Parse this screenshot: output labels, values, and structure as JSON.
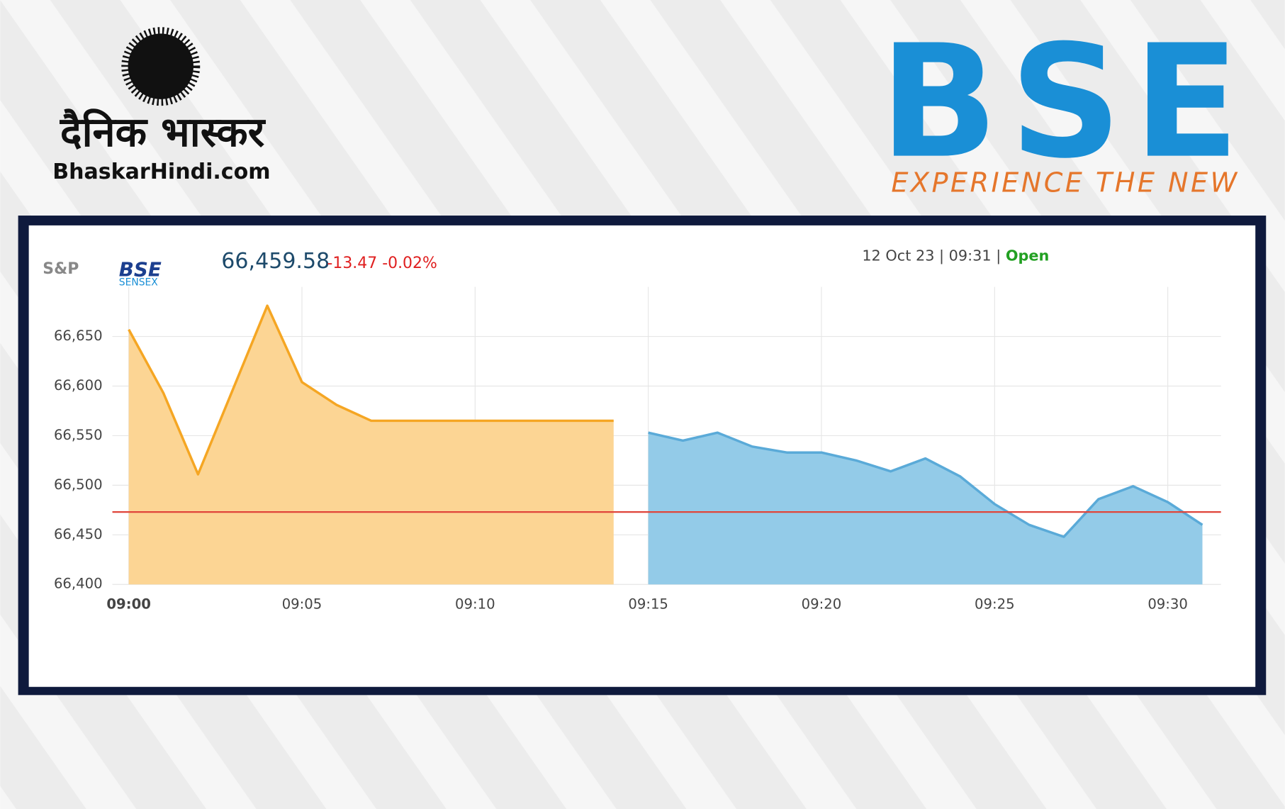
{
  "header": {
    "brand_hindi": "दैनिक भास्कर",
    "brand_site": "BhaskarHindi.com",
    "exchange_logo": "BSE",
    "exchange_tagline": "EXPERIENCE THE NEW"
  },
  "widget": {
    "index_prefix": "S&P",
    "index_name": "BSE",
    "index_sub": "SENSEX",
    "last_price": "66,459.58",
    "change": "-13.47",
    "change_pct": "-0.02%",
    "timestamp": "12 Oct 23 | 09:31 |",
    "status": "Open"
  },
  "chart_data": {
    "type": "area",
    "categories": [
      "09:00",
      null,
      null,
      null,
      null,
      "09:05",
      null,
      null,
      null,
      null,
      "09:10",
      null,
      null,
      null,
      null,
      "09:15",
      null,
      null,
      null,
      null,
      "09:20",
      null,
      null,
      null,
      null,
      "09:25",
      null,
      null,
      null,
      null,
      "09:30",
      null
    ],
    "series": [
      {
        "color": "#f5a623",
        "fill": "#fcd594",
        "values": [
          66657,
          66593,
          66511,
          66596,
          66681,
          66604,
          66581,
          66565,
          66565,
          66565,
          66565,
          66565,
          66565,
          66565,
          66565,
          null,
          null,
          null,
          null,
          null,
          null,
          null,
          null,
          null,
          null,
          null,
          null,
          null,
          null,
          null,
          null,
          null
        ]
      },
      {
        "color": "#5aaad8",
        "fill": "#93cbe8",
        "values": [
          null,
          null,
          null,
          null,
          null,
          null,
          null,
          null,
          null,
          null,
          null,
          null,
          null,
          null,
          null,
          66553,
          66545,
          66553,
          66539,
          66533,
          66533,
          66525,
          66514,
          66527,
          66509,
          66481,
          66460,
          66448,
          66486,
          66499,
          66483,
          66460
        ]
      }
    ],
    "reference_line": {
      "value": 66473,
      "color": "#e0453a"
    },
    "ylim": [
      66400,
      66700
    ],
    "yticks": [
      {
        "value": 66400,
        "label": "66,400"
      },
      {
        "value": 66450,
        "label": "66,450"
      },
      {
        "value": 66500,
        "label": "66,500"
      },
      {
        "value": 66550,
        "label": "66,550"
      },
      {
        "value": 66600,
        "label": "66,600"
      },
      {
        "value": 66650,
        "label": "66,650"
      }
    ],
    "grid": true
  }
}
